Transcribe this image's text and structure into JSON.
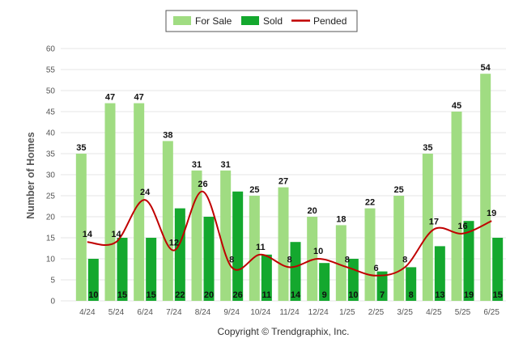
{
  "chart_data": {
    "type": "bar",
    "categories": [
      "4/24",
      "5/24",
      "6/24",
      "7/24",
      "8/24",
      "9/24",
      "10/24",
      "11/24",
      "12/24",
      "1/25",
      "2/25",
      "3/25",
      "4/25",
      "5/25",
      "6/25"
    ],
    "series": [
      {
        "name": "For Sale",
        "kind": "bar",
        "color": "#a0dc82",
        "values": [
          35,
          47,
          47,
          38,
          31,
          31,
          25,
          27,
          20,
          18,
          22,
          25,
          35,
          45,
          54
        ]
      },
      {
        "name": "Sold",
        "kind": "bar",
        "color": "#14a82e",
        "values": [
          10,
          15,
          15,
          22,
          20,
          26,
          11,
          14,
          9,
          10,
          7,
          8,
          13,
          19,
          15
        ]
      },
      {
        "name": "Pended",
        "kind": "line",
        "color": "#c00000",
        "values": [
          14,
          14,
          24,
          12,
          26,
          8,
          11,
          8,
          10,
          8,
          6,
          8,
          17,
          16,
          19
        ]
      }
    ],
    "ylabel": "Number of Homes",
    "xlabel": "",
    "ylim": [
      0,
      60
    ],
    "yticks": [
      0,
      5,
      10,
      15,
      20,
      25,
      30,
      35,
      40,
      45,
      50,
      55,
      60
    ],
    "grid": true,
    "legend_position": "top-center"
  },
  "footer": {
    "copyright": "Copyright © Trendgraphix, Inc."
  }
}
